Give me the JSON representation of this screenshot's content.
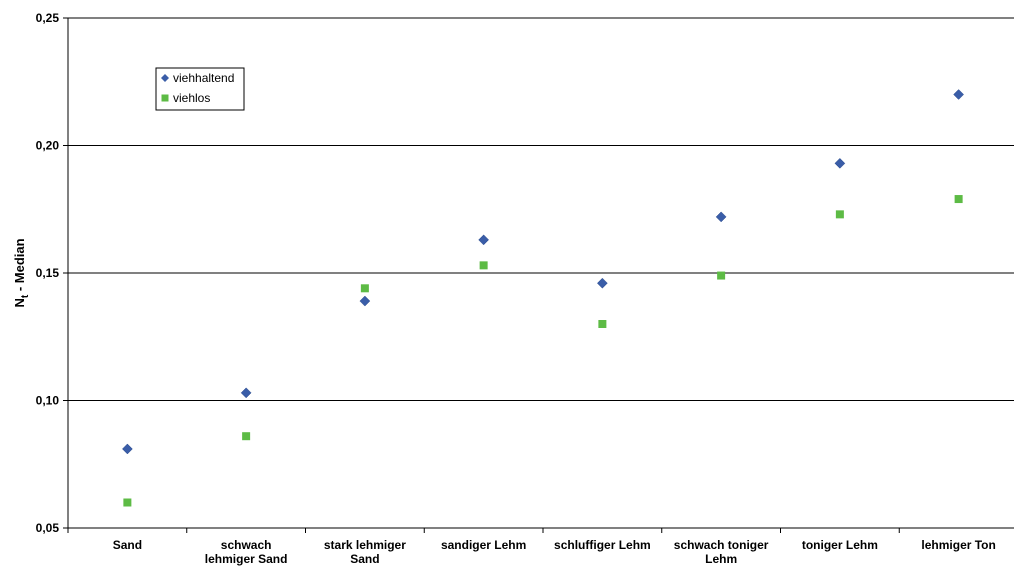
{
  "chart_data": {
    "type": "scatter",
    "title": "",
    "xlabel": "",
    "ylabel": "N",
    "ylabel_subscript": "t",
    "ylabel_suffix": " - Median",
    "ylim": [
      0.05,
      0.25
    ],
    "yticks": [
      0.05,
      0.1,
      0.15,
      0.2,
      0.25
    ],
    "ytick_labels": [
      "0,05",
      "0,10",
      "0,15",
      "0,20",
      "0,25"
    ],
    "grid": "horizontal",
    "legend_position": "top-left",
    "categories": [
      [
        "Sand"
      ],
      [
        "schwach",
        "lehmiger Sand"
      ],
      [
        "stark lehmiger",
        "Sand"
      ],
      [
        "sandiger Lehm"
      ],
      [
        "schluffiger Lehm"
      ],
      [
        "schwach toniger",
        "Lehm"
      ],
      [
        "toniger Lehm"
      ],
      [
        "lehmiger Ton"
      ]
    ],
    "series": [
      {
        "name": "viehhaltend",
        "marker": "diamond",
        "color": "#3A5DA8",
        "values": [
          0.081,
          0.103,
          0.139,
          0.163,
          0.146,
          0.172,
          0.193,
          0.22
        ]
      },
      {
        "name": "viehlos",
        "marker": "square",
        "color": "#5DBB45",
        "values": [
          0.06,
          0.086,
          0.144,
          0.153,
          0.13,
          0.149,
          0.173,
          0.179
        ]
      }
    ]
  }
}
